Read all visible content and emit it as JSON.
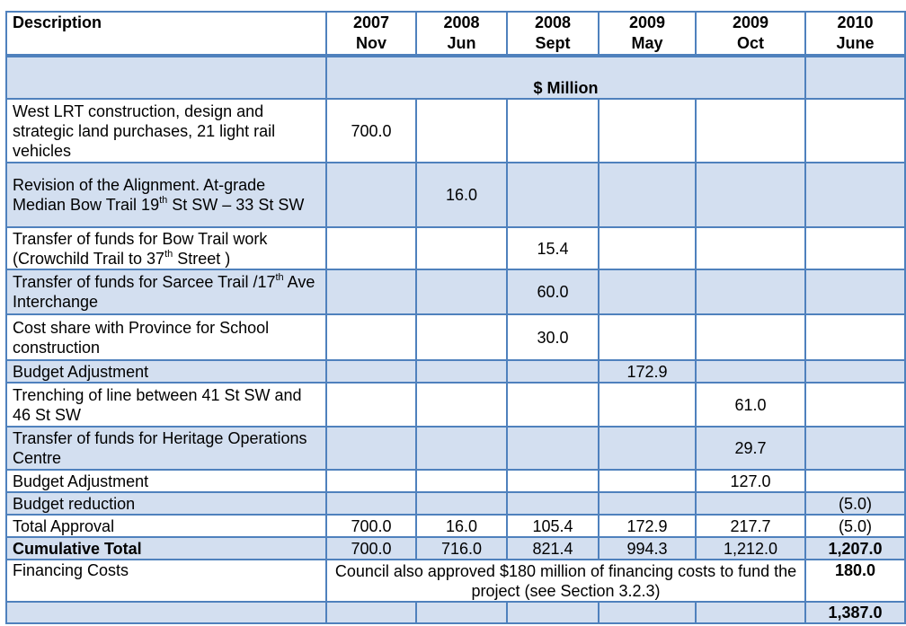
{
  "table": {
    "columns": [
      "Description",
      "2007|Nov",
      "2008|Jun",
      "2008|Sept",
      "2009|May",
      "2009|Oct",
      "2010|June"
    ],
    "header": [
      {
        "year": "",
        "month": "Description"
      },
      {
        "year": "2007",
        "month": "Nov"
      },
      {
        "year": "2008",
        "month": "Jun"
      },
      {
        "year": "2008",
        "month": "Sept"
      },
      {
        "year": "2009",
        "month": "May"
      },
      {
        "year": "2009",
        "month": "Oct"
      },
      {
        "year": "2010",
        "month": "June"
      }
    ],
    "unit_label": "$ Million",
    "rows": [
      {
        "d1": "West LRT construction, design and strategic land purchases, 21 light rail vehicles",
        "v": [
          "700.0",
          "",
          "",
          "",
          "",
          ""
        ]
      },
      {
        "d1": "Revision of the Alignment. At-grade Median Bow Trail 19",
        "sup": "th",
        "d2": " St SW – 33 St SW",
        "v": [
          "",
          "16.0",
          "",
          "",
          "",
          ""
        ]
      },
      {
        "d1": "Transfer of funds for Bow Trail work (Crowchild Trail to 37",
        "sup": "th",
        "d2": " Street )",
        "v": [
          "",
          "",
          "15.4",
          "",
          "",
          ""
        ]
      },
      {
        "d1": "Transfer of funds for Sarcee Trail /17",
        "sup": "th",
        "d2": " Ave Interchange",
        "v": [
          "",
          "",
          "60.0",
          "",
          "",
          ""
        ]
      },
      {
        "d1": "Cost share with Province for School construction",
        "v": [
          "",
          "",
          "30.0",
          "",
          "",
          ""
        ]
      },
      {
        "d1": "Budget Adjustment",
        "v": [
          "",
          "",
          "",
          "172.9",
          "",
          ""
        ]
      },
      {
        "d1": "Trenching of line between 41 St SW and 46 St SW",
        "v": [
          "",
          "",
          "",
          "",
          "61.0",
          ""
        ]
      },
      {
        "d1": "Transfer of funds for Heritage Operations Centre",
        "v": [
          "",
          "",
          "",
          "",
          "29.7",
          ""
        ]
      },
      {
        "d1": "Budget Adjustment",
        "v": [
          "",
          "",
          "",
          "",
          "127.0",
          ""
        ]
      },
      {
        "d1": "Budget reduction",
        "v": [
          "",
          "",
          "",
          "",
          "",
          "(5.0)"
        ]
      }
    ],
    "total_approval": {
      "label": "Total Approval",
      "v": [
        "700.0",
        "16.0",
        "105.4",
        "172.9",
        "217.7",
        "(5.0)"
      ]
    },
    "cumulative_total": {
      "label": "Cumulative Total",
      "v": [
        "700.0",
        "716.0",
        "821.4",
        "994.3",
        "1,212.0",
        "1,207.0"
      ]
    },
    "financing": {
      "label": "Financing Costs",
      "note": "Council also approved $180 million of financing costs to fund the project (see Section 3.2.3)",
      "value": "180.0"
    },
    "grand_total": "1,387.0"
  },
  "colors": {
    "border": "#4f81bd",
    "shade": "#d3dff0"
  }
}
